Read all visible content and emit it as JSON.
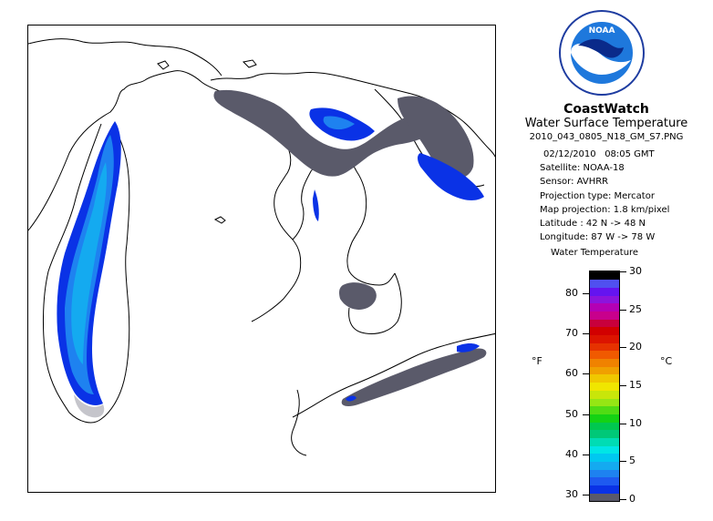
{
  "header": {
    "title": "CoastWatch",
    "subtitle": "Water Surface Temperature",
    "filename": "2010_043_0805_N18_GM_S7.PNG",
    "date": "02/12/2010",
    "time": "08:05 GMT",
    "satellite": "Satellite: NOAA-18",
    "sensor": "Sensor: AVHRR",
    "projection_type": "Projection type:  Mercator",
    "map_projection": "Map projection: 1.8 km/pixel",
    "latitude": "Latitude : 42 N -> 48 N",
    "longitude": "Longitude: 87 W -> 78 W"
  },
  "logo": {
    "text": "NOAA",
    "icon": "noaa-logo-icon"
  },
  "legend": {
    "title": "Water Temperature",
    "unit_f": "°F",
    "unit_c": "°C",
    "fahrenheit_ticks": [
      "80",
      "70",
      "60",
      "50",
      "40",
      "30"
    ],
    "celsius_ticks": [
      "30",
      "25",
      "20",
      "15",
      "10",
      "5",
      "0"
    ],
    "colors": [
      "#5a5a6a",
      "#0a32e6",
      "#1e5af0",
      "#1e82f0",
      "#14aaf0",
      "#00c8f0",
      "#00e6e6",
      "#00dcb4",
      "#00c878",
      "#00c850",
      "#14d214",
      "#50dc14",
      "#96e614",
      "#c8e60a",
      "#f0e600",
      "#f0c800",
      "#f0a000",
      "#f08200",
      "#f05a00",
      "#e63200",
      "#dc1400",
      "#d20000",
      "#c8003c",
      "#c8008c",
      "#b400b4",
      "#8c14dc",
      "#6414f0",
      "#5050f0",
      "#000000"
    ]
  },
  "map": {
    "region": "Great Lakes",
    "colors": {
      "cold_dark": "#0a32e6",
      "cold_mid": "#1e82f0",
      "cold_light": "#14aaf0",
      "ice": "#5a5a6a",
      "land": "#ffffff",
      "coast": "#000000"
    }
  }
}
